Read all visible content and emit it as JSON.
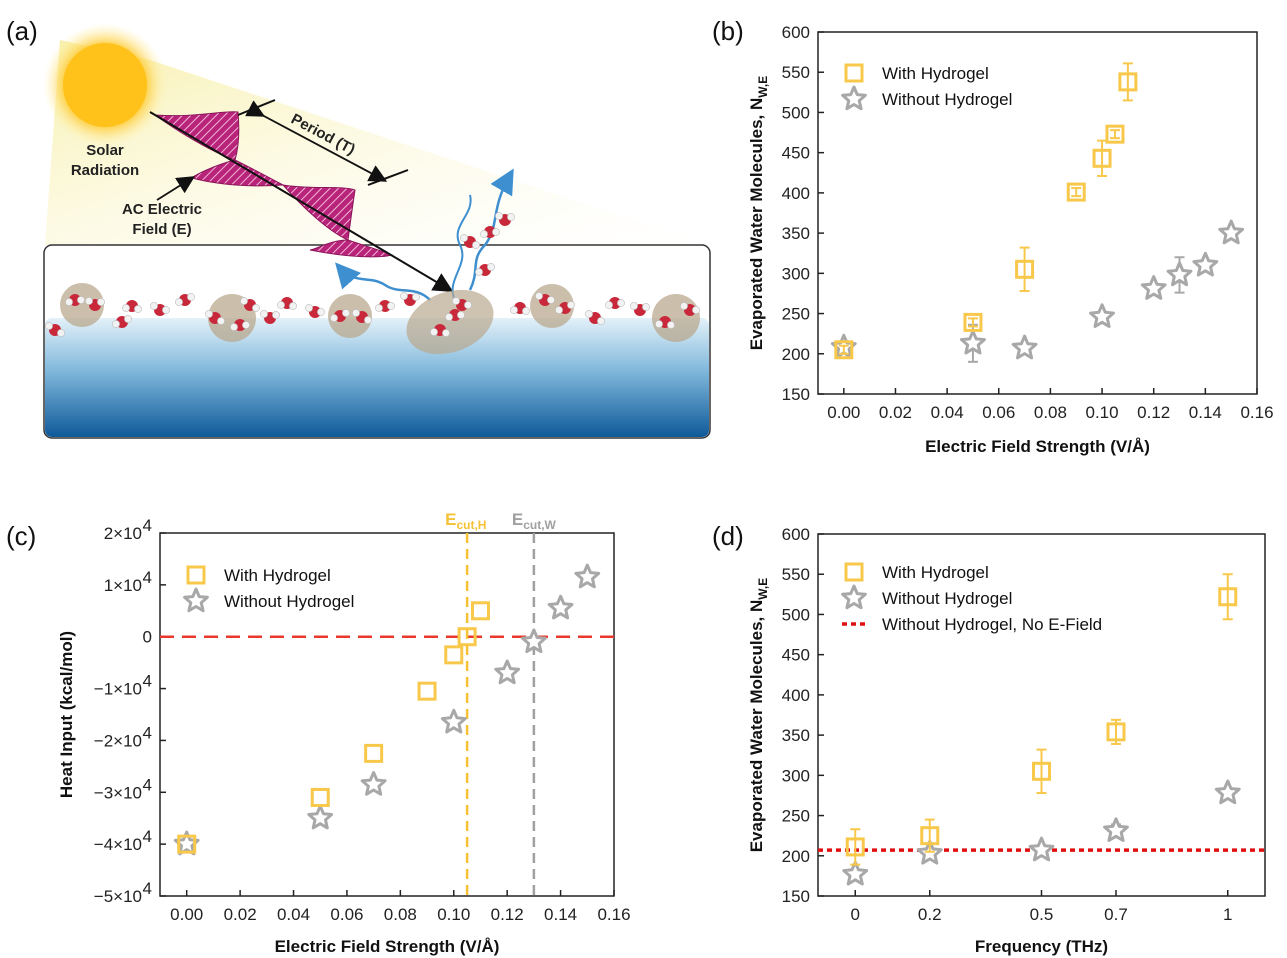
{
  "colors": {
    "with_hydrogel": "#F8C84A",
    "without_hydrogel": "#A8A8A8",
    "zero_line": "#E8392C",
    "no_field_line": "#E01010",
    "cut_h": "#F5C236",
    "cut_w": "#A0A0A0",
    "sun": "#FFC21A",
    "wave": "#B8247A",
    "water_top": "#D9ECF7",
    "water_bottom": "#0E5A9A"
  },
  "panel_a": {
    "label": "(a)",
    "solar_line1": "Solar",
    "solar_line2": "Radiation",
    "field_line1": "AC Electric",
    "field_line2": "Field (E)",
    "period": "Period (T)",
    "icons": [
      "sun-icon",
      "water-molecule-icon",
      "wavy-arrow-icon",
      "hydrogel-particle-icon"
    ]
  },
  "chart_data": [
    {
      "panel": "(b)",
      "type": "scatter",
      "xlabel": "Electric Field Strength (V/Å)",
      "ylabel": "Evaporated Water Molecules, N",
      "ylabel_sub": "W,E",
      "xlim": [
        -0.01,
        0.16
      ],
      "ylim": [
        150,
        600
      ],
      "xticks": [
        "0.00",
        "0.02",
        "0.04",
        "0.06",
        "0.08",
        "0.10",
        "0.12",
        "0.14",
        "0.16"
      ],
      "xtick_values": [
        0,
        0.02,
        0.04,
        0.06,
        0.08,
        0.1,
        0.12,
        0.14,
        0.16
      ],
      "yticks": [
        "150",
        "200",
        "250",
        "300",
        "350",
        "400",
        "450",
        "500",
        "550",
        "600"
      ],
      "ytick_values": [
        150,
        200,
        250,
        300,
        350,
        400,
        450,
        500,
        550,
        600
      ],
      "legend_position": "top-left",
      "series": [
        {
          "name": "With Hydrogel",
          "marker": "square",
          "x": [
            0.0,
            0.05,
            0.07,
            0.09,
            0.1,
            0.105,
            0.11
          ],
          "y": [
            205,
            239,
            305,
            401,
            443,
            473,
            538
          ],
          "err": [
            5,
            5,
            27,
            5,
            22,
            5,
            23
          ]
        },
        {
          "name": "Without Hydrogel",
          "marker": "star",
          "x": [
            0.0,
            0.05,
            0.07,
            0.1,
            0.12,
            0.13,
            0.14,
            0.15
          ],
          "y": [
            208,
            213,
            207,
            246,
            281,
            298,
            310,
            350
          ],
          "err": [
            5,
            23,
            5,
            5,
            5,
            22,
            5,
            5
          ]
        }
      ]
    },
    {
      "panel": "(c)",
      "type": "scatter",
      "xlabel": "Electric Field Strength (V/Å)",
      "ylabel": "Heat Input (kcal/mol)",
      "xlim": [
        -0.01,
        0.16
      ],
      "ylim": [
        -50000,
        20000
      ],
      "xticks": [
        "0.00",
        "0.02",
        "0.04",
        "0.06",
        "0.08",
        "0.10",
        "0.12",
        "0.14",
        "0.16"
      ],
      "xtick_values": [
        0,
        0.02,
        0.04,
        0.06,
        0.08,
        0.1,
        0.12,
        0.14,
        0.16
      ],
      "ytick_values": [
        20000,
        10000,
        0,
        -10000,
        -20000,
        -30000,
        -40000,
        -50000
      ],
      "ytick_labels": [
        {
          "pre": "2×10",
          "exp": "4"
        },
        {
          "pre": "1×10",
          "exp": "4"
        },
        {
          "pre": "0",
          "exp": ""
        },
        {
          "pre": "−1×10",
          "exp": "4"
        },
        {
          "pre": "−2×10",
          "exp": "4"
        },
        {
          "pre": "−3×10",
          "exp": "4"
        },
        {
          "pre": "−4×10",
          "exp": "4"
        },
        {
          "pre": "−5×10",
          "exp": "4"
        }
      ],
      "legend_position": "top-left",
      "cutoffs": [
        {
          "x": 0.105,
          "label": "E",
          "sub": "cut,H"
        },
        {
          "x": 0.13,
          "label": "E",
          "sub": "cut,W"
        }
      ],
      "series": [
        {
          "name": "With Hydrogel",
          "marker": "square",
          "x": [
            0.0,
            0.05,
            0.07,
            0.09,
            0.1,
            0.105,
            0.11
          ],
          "y": [
            -40000,
            -31000,
            -22500,
            -10500,
            -3500,
            0,
            5000
          ]
        },
        {
          "name": "Without Hydrogel",
          "marker": "star",
          "x": [
            0.0,
            0.05,
            0.07,
            0.1,
            0.12,
            0.13,
            0.14,
            0.15
          ],
          "y": [
            -40000,
            -35000,
            -28500,
            -16500,
            -7000,
            -1000,
            5500,
            11500
          ]
        }
      ]
    },
    {
      "panel": "(d)",
      "type": "scatter",
      "xlabel": "Frequency (THz)",
      "ylabel": "Evaporated Water Molecules, N",
      "ylabel_sub": "W,E",
      "xlim": [
        -0.1,
        1.1
      ],
      "ylim": [
        150,
        600
      ],
      "xticks": [
        "0",
        "0.2",
        "0.5",
        "0.7",
        "1"
      ],
      "xtick_values": [
        0,
        0.2,
        0.5,
        0.7,
        1.0
      ],
      "yticks": [
        "150",
        "200",
        "250",
        "300",
        "350",
        "400",
        "450",
        "500",
        "550",
        "600"
      ],
      "ytick_values": [
        150,
        200,
        250,
        300,
        350,
        400,
        450,
        500,
        550,
        600
      ],
      "legend_position": "top-left",
      "reference_line": {
        "name": "Without Hydrogel, No E-Field",
        "y": 207
      },
      "series": [
        {
          "name": "With Hydrogel",
          "marker": "square",
          "x": [
            0,
            0.2,
            0.5,
            0.7,
            1.0
          ],
          "y": [
            211,
            225,
            305,
            354,
            522
          ],
          "err": [
            22,
            20,
            27,
            15,
            28
          ]
        },
        {
          "name": "Without Hydrogel",
          "marker": "star",
          "x": [
            0,
            0.2,
            0.5,
            0.7,
            1.0
          ],
          "y": [
            177,
            203,
            207,
            231,
            278
          ],
          "err": [
            5,
            5,
            5,
            8,
            5
          ]
        }
      ]
    }
  ]
}
